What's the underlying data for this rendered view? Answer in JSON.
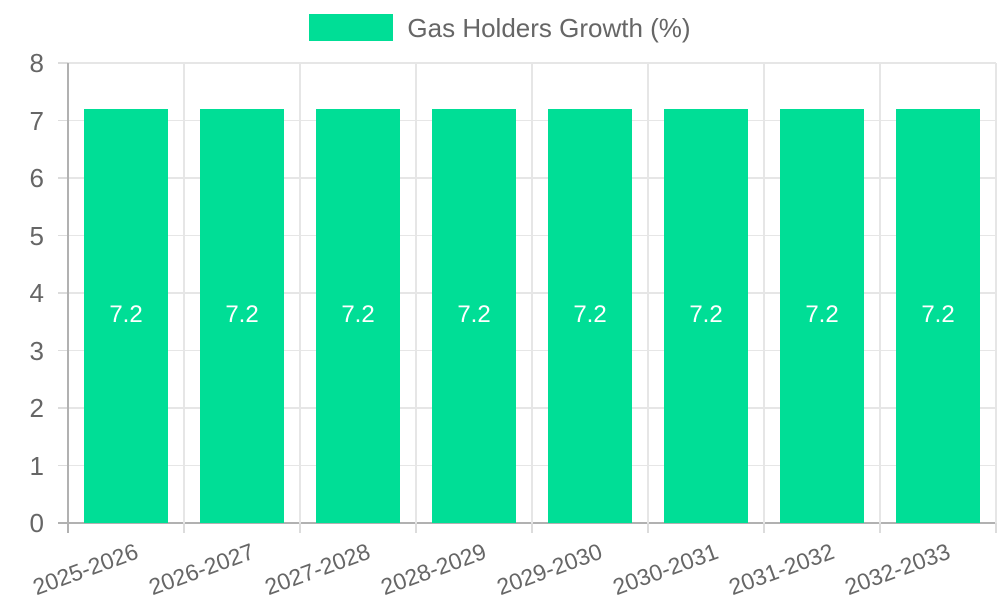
{
  "legend": {
    "label": "Gas Holders Growth (%)"
  },
  "colors": {
    "bar": "#00DE96",
    "grid": "#E6E6E6",
    "axis": "#B1B1B1",
    "tick": "#DCDCDC",
    "tick_label": "#666666",
    "legend_text": "#666666",
    "bar_label": "#FFFFFF",
    "background": "#FFFFFF"
  },
  "chart_data": {
    "type": "bar",
    "title": "Gas Holders Growth (%)",
    "categories": [
      "2025-2026",
      "2026-2027",
      "2027-2028",
      "2028-2029",
      "2029-2030",
      "2030-2031",
      "2031-2032",
      "2032-2033"
    ],
    "values": [
      7.2,
      7.2,
      7.2,
      7.2,
      7.2,
      7.2,
      7.2,
      7.2
    ],
    "value_labels": [
      "7.2",
      "7.2",
      "7.2",
      "7.2",
      "7.2",
      "7.2",
      "7.2",
      "7.2"
    ],
    "xlabel": "",
    "ylabel": "",
    "ylim": [
      0,
      8
    ],
    "yticks": [
      0,
      1,
      2,
      3,
      4,
      5,
      6,
      7,
      8
    ],
    "grid": true,
    "legend_position": "top",
    "x_label_rotation_deg": -20,
    "bar_label_position": "center"
  }
}
